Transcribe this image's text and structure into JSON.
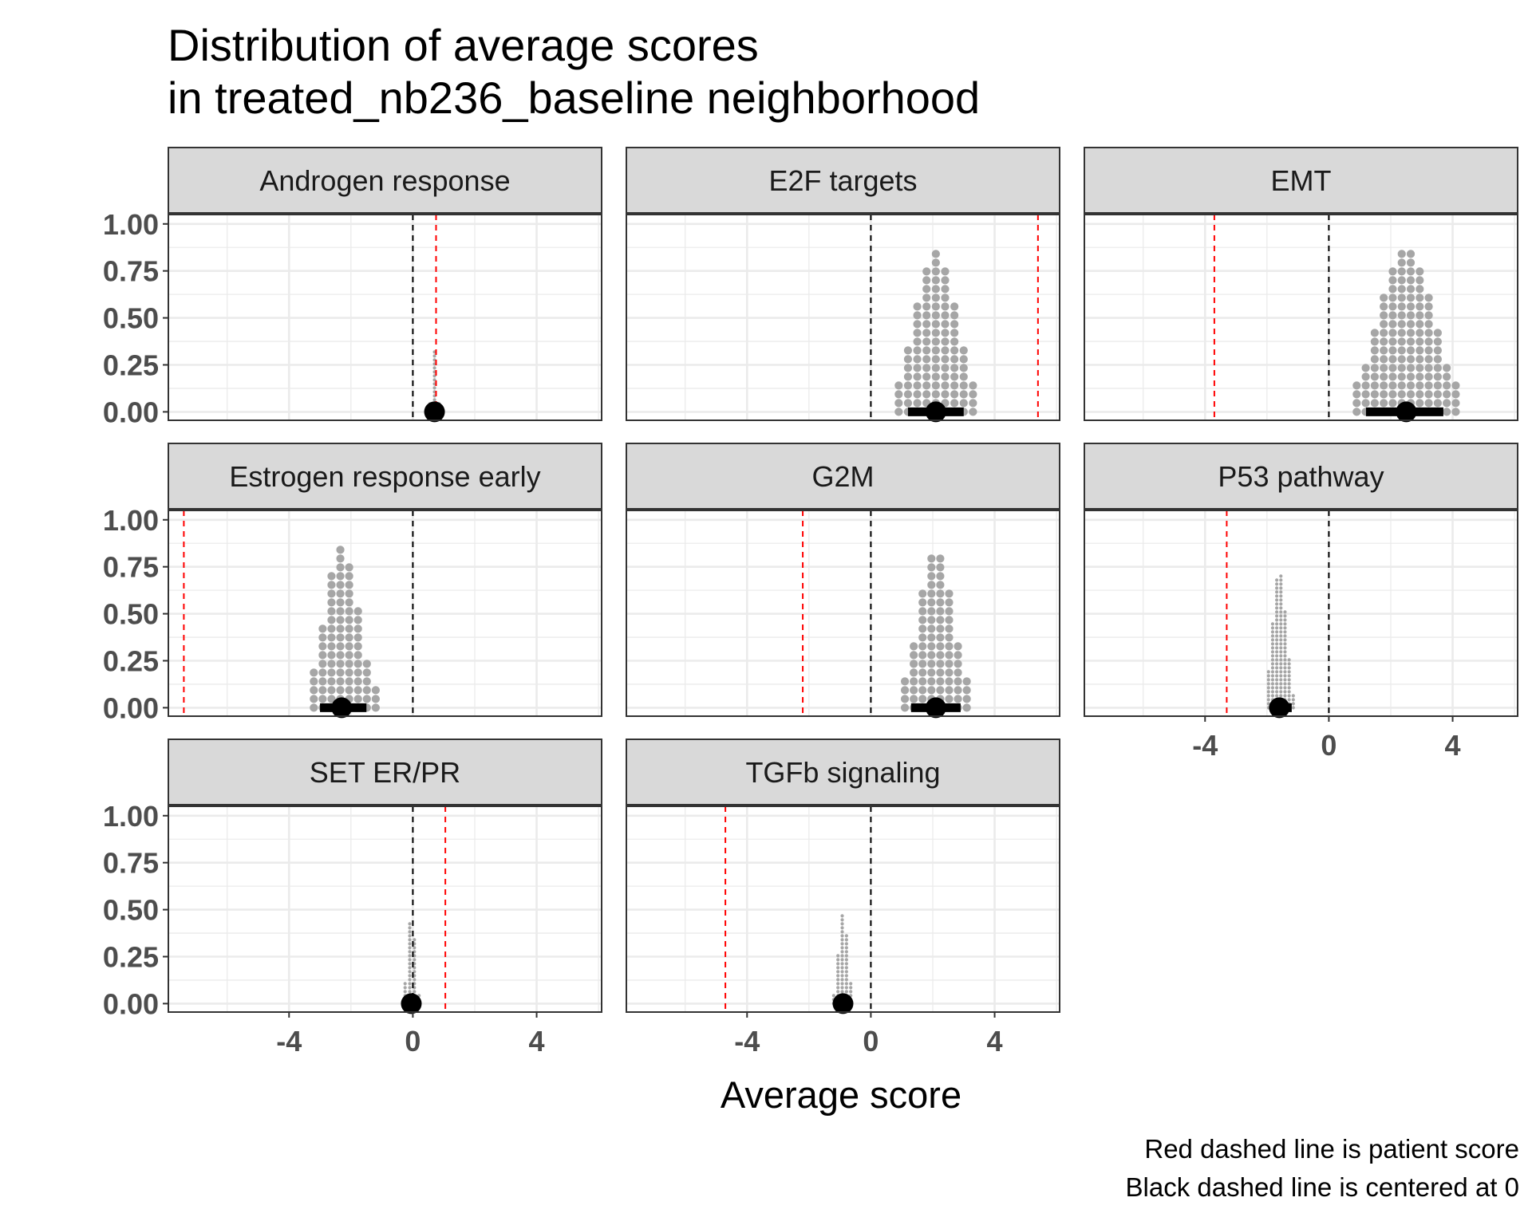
{
  "title_lines": [
    "Distribution of average scores",
    "in treated_nb236_baseline neighborhood"
  ],
  "caption_lines": [
    "Red dashed line is patient score",
    "Black dashed line is centered at 0"
  ],
  "colors": {
    "strip": "#d9d9d9",
    "grid": "#ebebeb",
    "dots": "#a6a6a6",
    "patient_line": "#ff0000",
    "zero_line": "#000000",
    "summary": "#000000",
    "border": "#333333"
  },
  "chart_data": {
    "type": "dotplot",
    "xlabel": "Average score",
    "ylabel": "",
    "xlim": [
      -7.9,
      6.1
    ],
    "ylim": [
      0,
      1.05
    ],
    "x_ticks": [
      -4,
      0,
      4
    ],
    "x_tick_labels": [
      "-4",
      "0",
      "4"
    ],
    "y_ticks": [
      0,
      0.25,
      0.5,
      0.75,
      1
    ],
    "y_tick_labels": [
      "0.00",
      "0.25",
      "0.50",
      "0.75",
      "1.00"
    ],
    "grid": true,
    "panels": [
      {
        "name": "Androgen response",
        "patient_score": 0.75,
        "zero_line": 0,
        "median": 0.7,
        "interval": [
          0.6,
          0.85
        ],
        "dist_center": 0.7,
        "dist_range": [
          0.55,
          0.85
        ],
        "max_stack": 0.34
      },
      {
        "name": "E2F targets",
        "patient_score": 5.4,
        "zero_line": 0,
        "median": 2.1,
        "interval": [
          1.2,
          3.0
        ],
        "dist_center": 2.1,
        "dist_range": [
          0.9,
          3.3
        ],
        "max_stack": 0.89
      },
      {
        "name": "EMT",
        "patient_score": -3.7,
        "zero_line": 0,
        "median": 2.5,
        "interval": [
          1.2,
          3.7
        ],
        "dist_center": 2.5,
        "dist_range": [
          0.9,
          4.1
        ],
        "max_stack": 0.89
      },
      {
        "name": "Estrogen response early",
        "patient_score": -7.4,
        "zero_line": 0,
        "median": -2.3,
        "interval": [
          -3.0,
          -1.5
        ],
        "dist_center": -2.3,
        "dist_range": [
          -3.2,
          -1.2
        ],
        "max_stack": 0.87
      },
      {
        "name": "G2M",
        "patient_score": -2.2,
        "zero_line": 0,
        "median": 2.1,
        "interval": [
          1.3,
          2.9
        ],
        "dist_center": 2.1,
        "dist_range": [
          1.1,
          3.1
        ],
        "max_stack": 0.87
      },
      {
        "name": "P53 pathway",
        "patient_score": -3.3,
        "zero_line": 0,
        "median": -1.6,
        "interval": [
          -1.9,
          -1.2
        ],
        "dist_center": -1.6,
        "dist_range": [
          -1.95,
          -1.15
        ],
        "max_stack": 0.74
      },
      {
        "name": "SET ER/PR",
        "patient_score": 1.05,
        "zero_line": 0,
        "median": -0.05,
        "interval": [
          -0.2,
          0.15
        ],
        "dist_center": -0.05,
        "dist_range": [
          -0.25,
          0.2
        ],
        "max_stack": 0.49
      },
      {
        "name": "TGFb signaling",
        "patient_score": -4.7,
        "zero_line": 0,
        "median": -0.9,
        "interval": [
          -1.15,
          -0.7
        ],
        "dist_center": -0.9,
        "dist_range": [
          -1.2,
          -0.65
        ],
        "max_stack": 0.49
      }
    ]
  }
}
